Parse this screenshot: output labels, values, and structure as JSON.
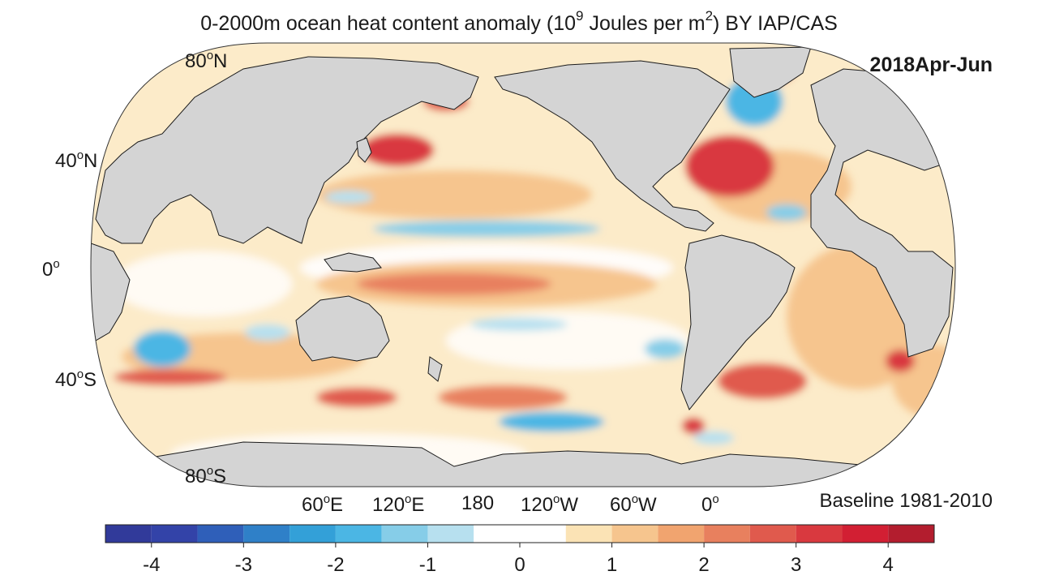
{
  "title": {
    "prefix": "0-2000m ocean heat content anomaly (10",
    "exp1": "9",
    "middle": "Joules per m",
    "exp2": "2",
    "suffix": ") BY IAP/CAS"
  },
  "period": "2018Apr-Jun",
  "baseline": "Baseline 1981-2010",
  "degree_mark": "o",
  "lat_labels": [
    {
      "deg": "80",
      "hemi": "N"
    },
    {
      "deg": "40",
      "hemi": "N"
    },
    {
      "deg": "0",
      "hemi": ""
    },
    {
      "deg": "40",
      "hemi": "S"
    },
    {
      "deg": "80",
      "hemi": "S"
    }
  ],
  "lon_labels": [
    {
      "deg": "60",
      "hemi": "E"
    },
    {
      "deg": "120",
      "hemi": "E"
    },
    {
      "deg": "180",
      "hemi": ""
    },
    {
      "deg": "120",
      "hemi": "W"
    },
    {
      "deg": "60",
      "hemi": "W"
    },
    {
      "deg": "0",
      "hemi": ""
    }
  ],
  "colorbar": {
    "min": -4.5,
    "max": 4.5,
    "step": 0.5,
    "colors": [
      "#313a9a",
      "#3343a8",
      "#2f5fb9",
      "#2f80c8",
      "#33a0d8",
      "#4bb6e4",
      "#86cde8",
      "#b7e0ef",
      "#ffffff",
      "#fbe3b5",
      "#f6c58e",
      "#f1a46f",
      "#e8805e",
      "#e05a4d",
      "#d9393f",
      "#d21f33",
      "#b31d2e"
    ],
    "ticks": [
      "-4",
      "-3",
      "-2",
      "-1",
      "0",
      "1",
      "2",
      "3",
      "4"
    ]
  },
  "colors": {
    "land": "#d4d4d4",
    "coast": "#1a1a1a",
    "ocean_neutral": "#ffffff"
  }
}
